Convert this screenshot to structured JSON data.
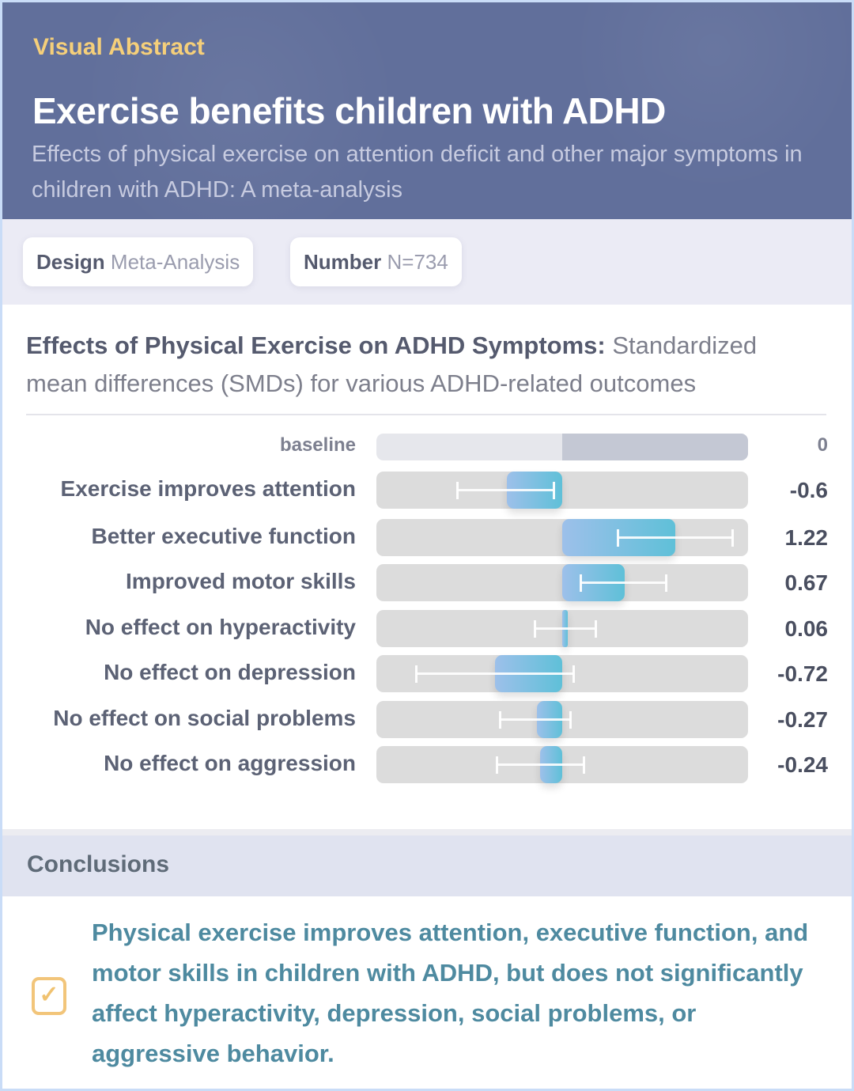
{
  "header": {
    "kicker": "Visual Abstract",
    "title": "Exercise benefits children with ADHD",
    "subtitle": "Effects of physical exercise on attention deficit and other major symptoms in children with ADHD: A meta-analysis"
  },
  "tags": [
    {
      "label": "Design",
      "value": "Meta-Analysis"
    },
    {
      "label": "Number",
      "value": "N=734"
    }
  ],
  "chart_heading": {
    "bold": "Effects of Physical Exercise on ADHD Symptoms:",
    "rest": "Standardized mean differences (SMDs) for various ADHD-related outcomes"
  },
  "chart_data": {
    "type": "bar",
    "orientation": "horizontal",
    "xlim": [
      -2,
      2
    ],
    "baseline": {
      "label": "baseline",
      "value_label": "0",
      "value": 0
    },
    "categories": [
      "Exercise improves attention",
      "Better executive function",
      "Improved motor skills",
      "No effect on hyperactivity",
      "No effect on depression",
      "No effect on social problems",
      "No effect on aggression"
    ],
    "values": [
      -0.6,
      1.22,
      0.67,
      0.06,
      -0.72,
      -0.27,
      -0.24
    ],
    "value_labels": [
      "-0.6",
      "1.22",
      "0.67",
      "0.06",
      "-0.72",
      "-0.27",
      "-0.24"
    ],
    "ci_low": [
      -1.13,
      0.6,
      0.2,
      -0.29,
      -1.57,
      -0.67,
      -0.7
    ],
    "ci_high": [
      -0.09,
      1.83,
      1.12,
      0.36,
      0.12,
      0.09,
      0.23
    ],
    "colors": {
      "bar_start": "#9dc0ea",
      "bar_end": "#5fc0d8",
      "track": "#dcdcdc"
    }
  },
  "conclusions": {
    "title": "Conclusions",
    "icon": "checkbox-checked-icon",
    "text": "Physical exercise improves attention, executive function, and motor skills in children with ADHD, but does not significantly affect hyperactivity, depression, social problems, or aggressive behavior."
  },
  "colors": {
    "header_bg": "#616f9b",
    "kicker": "#f5cf7a",
    "conclusion_text": "#4e8aa0",
    "check": "#f2c57a"
  }
}
